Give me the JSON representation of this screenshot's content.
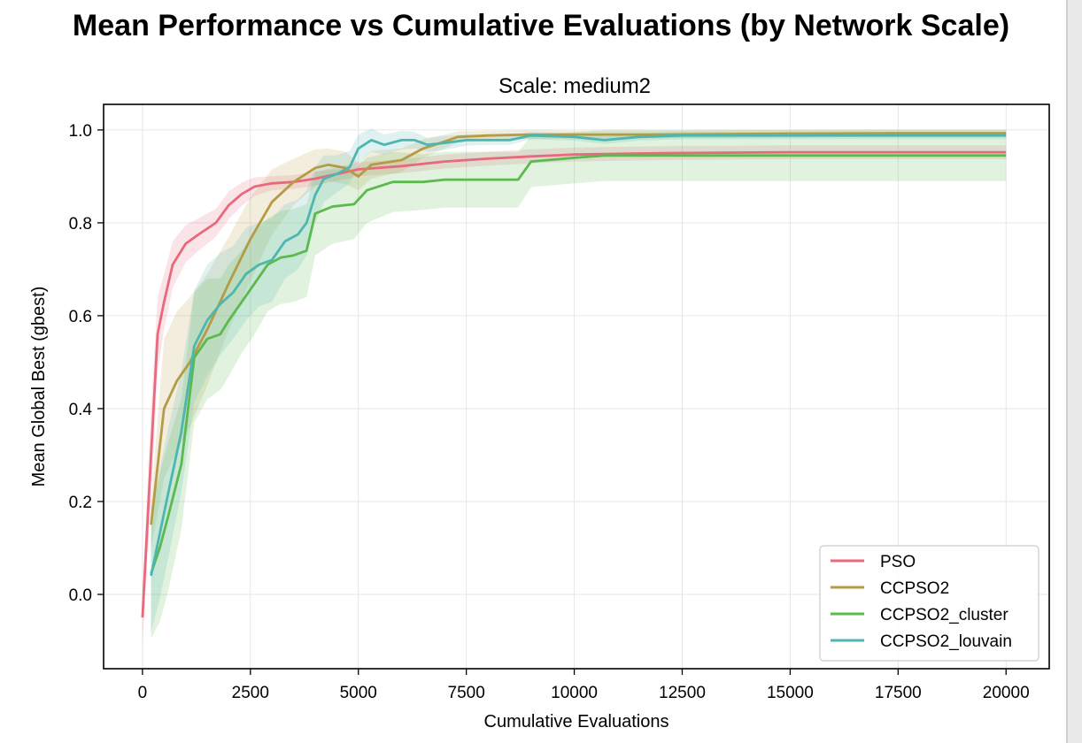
{
  "figure": {
    "suptitle": "Mean Performance vs Cumulative Evaluations (by Network Scale)"
  },
  "chart_data": {
    "type": "line",
    "title": "Scale: medium2",
    "xlabel": "Cumulative Evaluations",
    "ylabel": "Mean Global Best (gbest)",
    "xlim": [
      -900,
      21000
    ],
    "ylim": [
      -0.16,
      1.055
    ],
    "xticks": [
      0,
      2500,
      5000,
      7500,
      10000,
      12500,
      15000,
      17500,
      20000
    ],
    "xtick_labels": [
      "0",
      "2500",
      "5000",
      "7500",
      "10000",
      "12500",
      "15000",
      "17500",
      "20000"
    ],
    "yticks": [
      0.0,
      0.2,
      0.4,
      0.6,
      0.8,
      1.0
    ],
    "ytick_labels": [
      "0.0",
      "0.2",
      "0.4",
      "0.6",
      "0.8",
      "1.0"
    ],
    "grid": true,
    "legend_position": "lower-right",
    "series": [
      {
        "name": "PSO",
        "color": "#e8697d",
        "x": [
          0,
          200,
          350,
          500,
          700,
          1000,
          1300,
          1700,
          2000,
          2300,
          2600,
          3000,
          3500,
          4000,
          4500,
          5000,
          6000,
          7000,
          8000,
          9000,
          10000,
          12000,
          15000,
          17500,
          20000
        ],
        "y": [
          -0.05,
          0.3,
          0.56,
          0.63,
          0.71,
          0.755,
          0.775,
          0.8,
          0.838,
          0.862,
          0.878,
          0.885,
          0.888,
          0.895,
          0.905,
          0.915,
          0.922,
          0.932,
          0.938,
          0.943,
          0.947,
          0.95,
          0.952,
          0.952,
          0.952
        ],
        "band": [
          0.06,
          0.1,
          0.08,
          0.06,
          0.05,
          0.04,
          0.035,
          0.03,
          0.03,
          0.025,
          0.02,
          0.015,
          0.015,
          0.015,
          0.015,
          0.015,
          0.015,
          0.015,
          0.015,
          0.015,
          0.015,
          0.015,
          0.015,
          0.015,
          0.015
        ]
      },
      {
        "name": "CCPSO2",
        "color": "#b59b45",
        "x": [
          200,
          500,
          800,
          1100,
          1500,
          2000,
          2500,
          3000,
          3500,
          4000,
          4300,
          4700,
          5000,
          5300,
          6000,
          6500,
          7000,
          7300,
          8000,
          9000,
          10000,
          12000,
          15000,
          17500,
          20000
        ],
        "y": [
          0.15,
          0.4,
          0.46,
          0.5,
          0.57,
          0.67,
          0.765,
          0.845,
          0.888,
          0.918,
          0.925,
          0.918,
          0.9,
          0.925,
          0.935,
          0.96,
          0.975,
          0.985,
          0.988,
          0.99,
          0.99,
          0.99,
          0.992,
          0.993,
          0.993
        ],
        "band": [
          0.05,
          0.15,
          0.15,
          0.14,
          0.12,
          0.1,
          0.09,
          0.07,
          0.05,
          0.04,
          0.035,
          0.035,
          0.03,
          0.03,
          0.025,
          0.02,
          0.015,
          0.012,
          0.01,
          0.01,
          0.008,
          0.008,
          0.008,
          0.008,
          0.008
        ]
      },
      {
        "name": "CCPSO2_cluster",
        "color": "#5bb94d",
        "x": [
          200,
          400,
          600,
          900,
          1200,
          1500,
          1800,
          2000,
          2300,
          2600,
          2900,
          3200,
          3500,
          3800,
          4000,
          4400,
          4900,
          5200,
          5800,
          6500,
          7000,
          8000,
          8700,
          9000,
          10000,
          10700,
          12000,
          15000,
          17500,
          20000
        ],
        "y": [
          0.045,
          0.1,
          0.17,
          0.28,
          0.51,
          0.55,
          0.56,
          0.59,
          0.63,
          0.67,
          0.71,
          0.725,
          0.73,
          0.74,
          0.82,
          0.835,
          0.84,
          0.87,
          0.888,
          0.888,
          0.893,
          0.893,
          0.893,
          0.932,
          0.94,
          0.945,
          0.945,
          0.945,
          0.945,
          0.945
        ],
        "band": [
          0.14,
          0.16,
          0.16,
          0.14,
          0.14,
          0.13,
          0.12,
          0.12,
          0.11,
          0.11,
          0.1,
          0.1,
          0.1,
          0.1,
          0.09,
          0.08,
          0.075,
          0.07,
          0.065,
          0.06,
          0.06,
          0.06,
          0.06,
          0.055,
          0.055,
          0.055,
          0.055,
          0.055,
          0.055,
          0.055
        ]
      },
      {
        "name": "CCPSO2_louvain",
        "color": "#4db6b0",
        "x": [
          200,
          400,
          600,
          900,
          1200,
          1500,
          1800,
          2100,
          2400,
          2700,
          3000,
          3300,
          3600,
          3800,
          4000,
          4200,
          4500,
          4800,
          5000,
          5300,
          5600,
          6000,
          6300,
          6600,
          7000,
          7500,
          8000,
          8500,
          9000,
          10000,
          10700,
          11500,
          12500,
          15000,
          17500,
          20000
        ],
        "y": [
          0.04,
          0.13,
          0.22,
          0.35,
          0.535,
          0.59,
          0.625,
          0.65,
          0.69,
          0.71,
          0.72,
          0.76,
          0.775,
          0.8,
          0.86,
          0.895,
          0.905,
          0.92,
          0.96,
          0.978,
          0.968,
          0.978,
          0.978,
          0.968,
          0.972,
          0.978,
          0.978,
          0.978,
          0.988,
          0.985,
          0.978,
          0.985,
          0.988,
          0.988,
          0.988,
          0.988
        ],
        "band": [
          0.12,
          0.14,
          0.14,
          0.13,
          0.12,
          0.12,
          0.11,
          0.1,
          0.1,
          0.09,
          0.09,
          0.08,
          0.075,
          0.07,
          0.06,
          0.05,
          0.04,
          0.035,
          0.03,
          0.025,
          0.022,
          0.02,
          0.018,
          0.015,
          0.015,
          0.012,
          0.01,
          0.01,
          0.008,
          0.008,
          0.008,
          0.008,
          0.008,
          0.008,
          0.008,
          0.008
        ]
      }
    ]
  }
}
